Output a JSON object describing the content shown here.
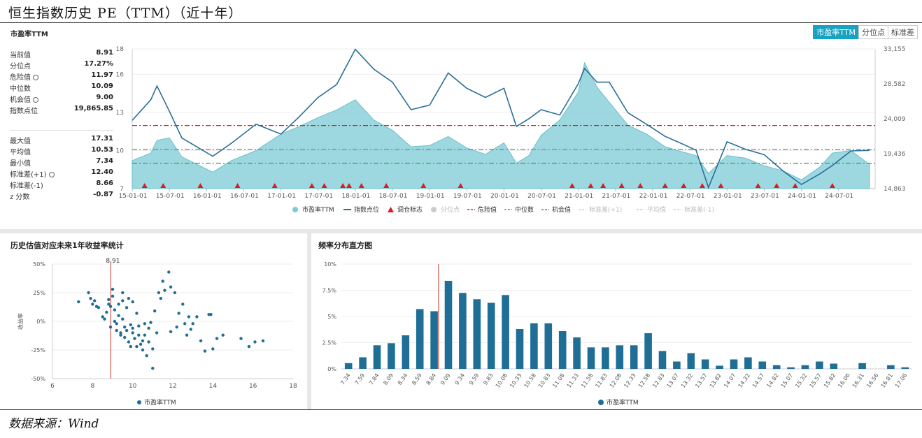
{
  "header": {
    "title": "恒生指数历史 PE（TTM）（近十年）"
  },
  "top_panel": {
    "title": "市盈率TTM",
    "tabs": [
      "市盈率TTM",
      "分位点",
      "标准差"
    ],
    "stats1": [
      {
        "label": "当前值",
        "value": "8.91",
        "gear": false
      },
      {
        "label": "分位点",
        "value": "17.27%",
        "gear": false
      },
      {
        "label": "危险值",
        "value": "11.97",
        "gear": true
      },
      {
        "label": "中位数",
        "value": "10.09",
        "gear": false
      },
      {
        "label": "机会值",
        "value": "9.00",
        "gear": true
      },
      {
        "label": "指数点位",
        "value": "19,865.85",
        "gear": false
      }
    ],
    "stats2": [
      {
        "label": "最大值",
        "value": "17.31",
        "gear": false
      },
      {
        "label": "平均值",
        "value": "10.53",
        "gear": false
      },
      {
        "label": "最小值",
        "value": "7.34",
        "gear": false
      },
      {
        "label": "标准差(+1)",
        "value": "12.40",
        "gear": true
      },
      {
        "label": "标准差(-1)",
        "value": "8.66",
        "gear": false
      },
      {
        "label": "z 分数",
        "value": "-0.87",
        "gear": false
      }
    ],
    "legend": [
      {
        "label": "市盈率TTM",
        "color": "#7ccbd6",
        "shape": "dot",
        "active": true
      },
      {
        "label": "指数点位",
        "color": "#2a6f97",
        "shape": "line",
        "active": true
      },
      {
        "label": "调仓标志",
        "color": "#d61f1f",
        "shape": "tri",
        "active": true
      },
      {
        "label": "分位点",
        "color": "#bbbbbb",
        "shape": "dot",
        "active": false
      },
      {
        "label": "危险值",
        "color": "#d61f1f",
        "shape": "dash",
        "active": true
      },
      {
        "label": "中位数",
        "color": "#888888",
        "shape": "dash",
        "active": true
      },
      {
        "label": "机会值",
        "color": "#2e9e4f",
        "shape": "dash",
        "active": true
      },
      {
        "label": "标准差(+1)",
        "color": "#bbbbbb",
        "shape": "dash",
        "active": false
      },
      {
        "label": "平均值",
        "color": "#bbbbbb",
        "shape": "dash",
        "active": false
      },
      {
        "label": "标准差(-1)",
        "color": "#bbbbbb",
        "shape": "dash",
        "active": false
      }
    ]
  },
  "scatter_panel": {
    "title": "历史估值对应未来1年收益率统计",
    "ylabel": "收益率",
    "marker_label": "8.91",
    "legend": "市盈率TTM"
  },
  "hist_panel": {
    "title": "频率分布直方图",
    "legend": "市盈率TTM"
  },
  "footer": {
    "source": "数据来源：Wind"
  },
  "colors": {
    "accent": "#16a2c2",
    "area": "#7ccbd6",
    "index_line": "#2a6f97",
    "danger": "#d61f1f",
    "median": "#888888",
    "opportunity": "#2e9e4f",
    "bar": "#1f6e96",
    "marker": "#c0392b"
  },
  "chart_data": [
    {
      "type": "area",
      "title": "市盈率TTM",
      "x_ticks": [
        "15-01-01",
        "15-07-01",
        "16-01-01",
        "16-07-01",
        "17-01-01",
        "17-07-01",
        "18-01-01",
        "18-07-01",
        "19-01-01",
        "19-07-01",
        "20-01-01",
        "20-07-01",
        "21-01-01",
        "21-07-01",
        "22-01-01",
        "22-07-01",
        "23-01-01",
        "23-07-01",
        "24-01-01",
        "24-07-01"
      ],
      "y_left_ticks": [
        "7",
        "10",
        "13",
        "16",
        "18"
      ],
      "y_left_range": [
        7,
        18
      ],
      "y_right_ticks": [
        "14,863",
        "19,436",
        "24,009",
        "28,582",
        "33,155"
      ],
      "y_right_range": [
        14863,
        33155
      ],
      "grid": true,
      "series": [
        {
          "name": "市盈率TTM",
          "axis": "left",
          "x": [
            "2015-01",
            "2015-04",
            "2015-05",
            "2015-07",
            "2015-09",
            "2016-02",
            "2016-05",
            "2016-09",
            "2017-01",
            "2017-04",
            "2017-07",
            "2017-10",
            "2018-01",
            "2018-04",
            "2018-07",
            "2018-10",
            "2019-01",
            "2019-04",
            "2019-07",
            "2019-10",
            "2020-01",
            "2020-03",
            "2020-05",
            "2020-07",
            "2020-10",
            "2021-01",
            "2021-02",
            "2021-04",
            "2021-06",
            "2021-09",
            "2021-12",
            "2022-03",
            "2022-05",
            "2022-08",
            "2022-10",
            "2023-01",
            "2023-04",
            "2023-07",
            "2023-10",
            "2024-01",
            "2024-04",
            "2024-06",
            "2024-09",
            "2024-12"
          ],
          "values": [
            9.2,
            9.8,
            10.8,
            11.0,
            9.5,
            8.3,
            9.2,
            10.0,
            11.3,
            11.9,
            12.6,
            13.2,
            14.0,
            12.4,
            11.6,
            10.3,
            10.4,
            11.1,
            10.2,
            9.7,
            10.6,
            9.0,
            9.6,
            11.2,
            12.4,
            14.6,
            16.9,
            15.0,
            13.8,
            12.0,
            11.3,
            10.3,
            10.0,
            9.6,
            8.2,
            9.6,
            9.4,
            8.8,
            8.4,
            7.7,
            8.7,
            9.8,
            10.0,
            8.9
          ]
        },
        {
          "name": "指数点位",
          "axis": "right",
          "x": [
            "2015-01",
            "2015-04",
            "2015-05",
            "2015-07",
            "2015-09",
            "2016-02",
            "2016-05",
            "2016-09",
            "2017-01",
            "2017-04",
            "2017-07",
            "2017-10",
            "2018-01",
            "2018-04",
            "2018-07",
            "2018-10",
            "2019-01",
            "2019-04",
            "2019-07",
            "2019-10",
            "2020-01",
            "2020-03",
            "2020-05",
            "2020-07",
            "2020-10",
            "2021-01",
            "2021-02",
            "2021-04",
            "2021-06",
            "2021-09",
            "2021-12",
            "2022-03",
            "2022-05",
            "2022-08",
            "2022-10",
            "2023-01",
            "2023-04",
            "2023-07",
            "2023-10",
            "2024-01",
            "2024-04",
            "2024-06",
            "2024-09",
            "2024-12"
          ],
          "values": [
            23800,
            26500,
            28300,
            25000,
            21500,
            19100,
            20800,
            23300,
            22000,
            24300,
            26800,
            28500,
            33100,
            30500,
            28800,
            25200,
            25800,
            30000,
            28000,
            26800,
            28000,
            23000,
            24000,
            25200,
            24500,
            28600,
            30600,
            28800,
            28800,
            24800,
            23300,
            21700,
            21000,
            19900,
            15000,
            21000,
            20000,
            19300,
            17200,
            15400,
            16800,
            17900,
            19800,
            19865
          ]
        }
      ],
      "reference_lines": [
        {
          "name": "危险值",
          "value": 11.97
        },
        {
          "name": "中位数",
          "value": 10.09
        },
        {
          "name": "机会值",
          "value": 9.0
        }
      ],
      "rebalance_marks": [
        "2015-03",
        "2015-06",
        "2015-12",
        "2016-06",
        "2016-12",
        "2017-06",
        "2017-08",
        "2017-11",
        "2017-12",
        "2018-02",
        "2018-06",
        "2018-12",
        "2019-06",
        "2020-12",
        "2021-03",
        "2021-05",
        "2021-08",
        "2021-11",
        "2022-03",
        "2022-06",
        "2022-09",
        "2022-12",
        "2023-06",
        "2023-09",
        "2023-12",
        "2024-06"
      ]
    },
    {
      "type": "scatter",
      "title": "历史估值对应未来1年收益率统计",
      "xlabel": "",
      "ylabel": "收益率",
      "xlim": [
        6,
        18
      ],
      "ylim": [
        -50,
        50
      ],
      "x_ticks": [
        "6",
        "8",
        "10",
        "12",
        "14",
        "16",
        "18"
      ],
      "y_ticks": [
        "50%",
        "25%",
        "0%",
        "-25%",
        "-50%"
      ],
      "marker_x": 8.91,
      "series": [
        {
          "name": "市盈率TTM",
          "points": [
            [
              7.3,
              17
            ],
            [
              7.8,
              25
            ],
            [
              7.9,
              20
            ],
            [
              8.0,
              15
            ],
            [
              8.1,
              18
            ],
            [
              8.2,
              13
            ],
            [
              8.3,
              12
            ],
            [
              8.5,
              4
            ],
            [
              8.6,
              2
            ],
            [
              8.7,
              8
            ],
            [
              8.8,
              15
            ],
            [
              8.8,
              19
            ],
            [
              8.9,
              13
            ],
            [
              8.9,
              -5
            ],
            [
              9.0,
              22
            ],
            [
              9.0,
              28
            ],
            [
              9.1,
              10
            ],
            [
              9.1,
              0
            ],
            [
              9.2,
              -2
            ],
            [
              9.2,
              -8
            ],
            [
              9.3,
              15
            ],
            [
              9.3,
              5
            ],
            [
              9.4,
              -10
            ],
            [
              9.4,
              -12
            ],
            [
              9.5,
              25
            ],
            [
              9.5,
              18
            ],
            [
              9.5,
              2
            ],
            [
              9.6,
              -5
            ],
            [
              9.6,
              -14
            ],
            [
              9.7,
              12
            ],
            [
              9.7,
              -8
            ],
            [
              9.8,
              20
            ],
            [
              9.8,
              -18
            ],
            [
              9.9,
              -3
            ],
            [
              9.9,
              -22
            ],
            [
              10.0,
              17
            ],
            [
              10.0,
              -10
            ],
            [
              10.0,
              -6
            ],
            [
              10.1,
              -15
            ],
            [
              10.2,
              -22
            ],
            [
              10.2,
              7
            ],
            [
              10.3,
              -12
            ],
            [
              10.3,
              -4
            ],
            [
              10.4,
              -20
            ],
            [
              10.5,
              -17
            ],
            [
              10.5,
              -25
            ],
            [
              10.6,
              -2
            ],
            [
              10.6,
              -12
            ],
            [
              10.7,
              -30
            ],
            [
              10.8,
              -6
            ],
            [
              10.8,
              -18
            ],
            [
              10.9,
              -1
            ],
            [
              11.0,
              -24
            ],
            [
              11.0,
              -41
            ],
            [
              11.1,
              9
            ],
            [
              11.2,
              -10
            ],
            [
              11.3,
              25
            ],
            [
              11.4,
              20
            ],
            [
              11.5,
              35
            ],
            [
              11.6,
              27
            ],
            [
              11.8,
              43
            ],
            [
              11.9,
              30
            ],
            [
              11.9,
              -9
            ],
            [
              12.1,
              25
            ],
            [
              12.2,
              -5
            ],
            [
              12.3,
              7
            ],
            [
              12.5,
              15
            ],
            [
              12.6,
              -2
            ],
            [
              12.7,
              -12
            ],
            [
              12.8,
              4
            ],
            [
              12.9,
              -7
            ],
            [
              13.0,
              -2
            ],
            [
              13.2,
              4
            ],
            [
              13.4,
              -17
            ],
            [
              13.6,
              -26
            ],
            [
              13.8,
              6
            ],
            [
              13.9,
              6
            ],
            [
              14.0,
              -24
            ],
            [
              14.2,
              -15
            ],
            [
              14.5,
              -12
            ],
            [
              15.4,
              -15
            ],
            [
              15.8,
              -22
            ],
            [
              16.1,
              -18
            ],
            [
              16.5,
              -17
            ]
          ]
        }
      ]
    },
    {
      "type": "bar",
      "title": "频率分布直方图",
      "categories": [
        "7.34",
        "7.59",
        "7.84",
        "8.09",
        "8.34",
        "8.59",
        "8.84",
        "9.09",
        "9.34",
        "9.59",
        "9.83",
        "10.08",
        "10.33",
        "10.58",
        "10.83",
        "11.08",
        "11.33",
        "11.58",
        "11.83",
        "12.08",
        "12.33",
        "12.58",
        "12.83",
        "13.07",
        "13.32",
        "13.57",
        "13.82",
        "14.07",
        "14.32",
        "14.57",
        "14.82",
        "15.07",
        "15.32",
        "15.57",
        "15.82",
        "16.06",
        "16.31",
        "16.56",
        "16.81",
        "17.06"
      ],
      "values": [
        0.55,
        1.1,
        2.25,
        2.45,
        3.2,
        5.7,
        5.5,
        8.4,
        7.25,
        6.65,
        6.3,
        7.05,
        3.8,
        4.35,
        4.35,
        3.6,
        3.0,
        2.05,
        2.05,
        2.25,
        2.25,
        3.4,
        1.7,
        0.7,
        1.5,
        0.9,
        0.3,
        0.9,
        1.1,
        0.7,
        0.35,
        0.15,
        0.35,
        0.7,
        0.5,
        0.0,
        0.55,
        0.0,
        0.35,
        0.15
      ],
      "ylim": [
        0,
        10
      ],
      "y_ticks": [
        "10%",
        "7.5%",
        "5%",
        "2.5%",
        "0%"
      ],
      "marker_category": "8.84"
    }
  ]
}
